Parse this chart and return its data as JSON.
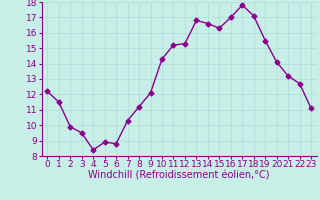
{
  "x": [
    0,
    1,
    2,
    3,
    4,
    5,
    6,
    7,
    8,
    9,
    10,
    11,
    12,
    13,
    14,
    15,
    16,
    17,
    18,
    19,
    20,
    21,
    22,
    23
  ],
  "y": [
    12.2,
    11.5,
    9.9,
    9.5,
    8.4,
    8.9,
    8.8,
    10.3,
    11.2,
    12.1,
    14.3,
    15.2,
    15.3,
    16.8,
    16.6,
    16.3,
    17.0,
    17.8,
    17.1,
    15.5,
    14.1,
    13.2,
    12.7,
    11.1
  ],
  "line_color": "#8b008b",
  "marker": "D",
  "markersize": 2.5,
  "linewidth": 1.0,
  "bg_color": "#c8eee8",
  "grid_color": "#b0ddd8",
  "xlabel": "Windchill (Refroidissement éolien,°C)",
  "xlabel_color": "#8b008b",
  "tick_color": "#8b008b",
  "ylim": [
    8,
    18
  ],
  "xlim": [
    -0.5,
    23.5
  ],
  "yticks": [
    8,
    9,
    10,
    11,
    12,
    13,
    14,
    15,
    16,
    17,
    18
  ],
  "xticks": [
    0,
    1,
    2,
    3,
    4,
    5,
    6,
    7,
    8,
    9,
    10,
    11,
    12,
    13,
    14,
    15,
    16,
    17,
    18,
    19,
    20,
    21,
    22,
    23
  ],
  "tick_fontsize": 6.5,
  "xlabel_fontsize": 7.0,
  "grid_linewidth": 0.5
}
